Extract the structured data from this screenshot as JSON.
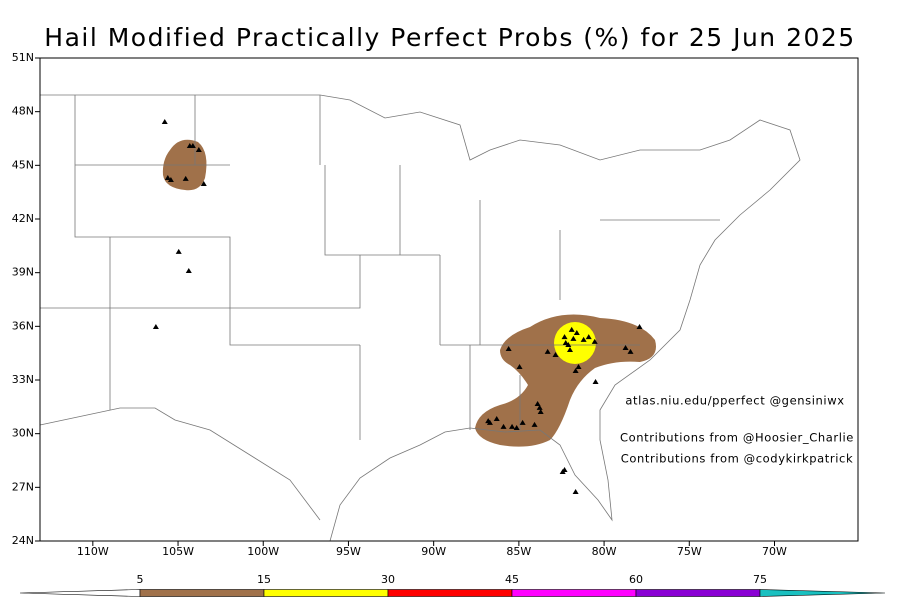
{
  "chart_data": {
    "type": "map",
    "title": "Hail Modified Practically Perfect Probs (%) for 25 Jun 2025",
    "xlim": [
      -113.1,
      -65.1
    ],
    "ylim": [
      24,
      51
    ],
    "xticks": [
      {
        "value": -110,
        "label": "110W"
      },
      {
        "value": -105,
        "label": "105W"
      },
      {
        "value": -100,
        "label": "100W"
      },
      {
        "value": -95,
        "label": "95W"
      },
      {
        "value": -90,
        "label": "90W"
      },
      {
        "value": -85,
        "label": "85W"
      },
      {
        "value": -80,
        "label": "80W"
      },
      {
        "value": -75,
        "label": "75W"
      },
      {
        "value": -70,
        "label": "70W"
      }
    ],
    "yticks": [
      {
        "value": 24,
        "label": "24N"
      },
      {
        "value": 27,
        "label": "27N"
      },
      {
        "value": 30,
        "label": "30N"
      },
      {
        "value": 33,
        "label": "33N"
      },
      {
        "value": 36,
        "label": "36N"
      },
      {
        "value": 39,
        "label": "39N"
      },
      {
        "value": 42,
        "label": "42N"
      },
      {
        "value": 45,
        "label": "45N"
      },
      {
        "value": 48,
        "label": "48N"
      },
      {
        "value": 51,
        "label": "51N"
      }
    ],
    "annotations": [
      "atlas.niu.edu/pperfect @gensiniwx",
      "Contributions from @Hoosier_Charlie",
      "Contributions from @codykirkpatrick"
    ],
    "reports": {
      "lon": [
        -105.78,
        -104.31,
        -104.13,
        -103.78,
        -105.6,
        -105.42,
        -104.55,
        -103.49,
        -104.96,
        -104.37,
        -106.3,
        -85.6,
        -84.96,
        -83.31,
        -82.85,
        -82.32,
        -81.9,
        -81.6,
        -81.2,
        -80.9,
        -80.55,
        -82.1,
        -82.25,
        -82.0,
        -81.8,
        -78.74,
        -78.45,
        -77.92,
        -81.5,
        -81.67,
        -80.5,
        -83.9,
        -83.78,
        -83.72,
        -84.78,
        -85.13,
        -86.3,
        -86.7,
        -85.9,
        -85.4,
        -86.8,
        -84.08,
        -82.43,
        -82.32,
        -81.67
      ],
      "lat": [
        47.42,
        46.08,
        46.08,
        45.86,
        44.29,
        44.18,
        44.24,
        43.96,
        40.16,
        39.09,
        35.96,
        34.73,
        33.73,
        34.57,
        34.4,
        35.4,
        35.8,
        35.63,
        35.24,
        35.4,
        35.13,
        34.96,
        35.07,
        34.68,
        35.3,
        34.79,
        34.57,
        35.96,
        33.73,
        33.5,
        32.89,
        31.66,
        31.44,
        31.21,
        30.6,
        30.32,
        30.82,
        30.6,
        30.38,
        30.38,
        30.7,
        30.49,
        27.86,
        27.97,
        26.74
      ]
    },
    "colorbar": {
      "levels": [
        5,
        15,
        30,
        45,
        60,
        75
      ],
      "colors": [
        "#a0714a",
        "#ffff00",
        "#ff0000",
        "#ff00ff",
        "#8a00d4",
        "#19c0c0"
      ]
    }
  }
}
